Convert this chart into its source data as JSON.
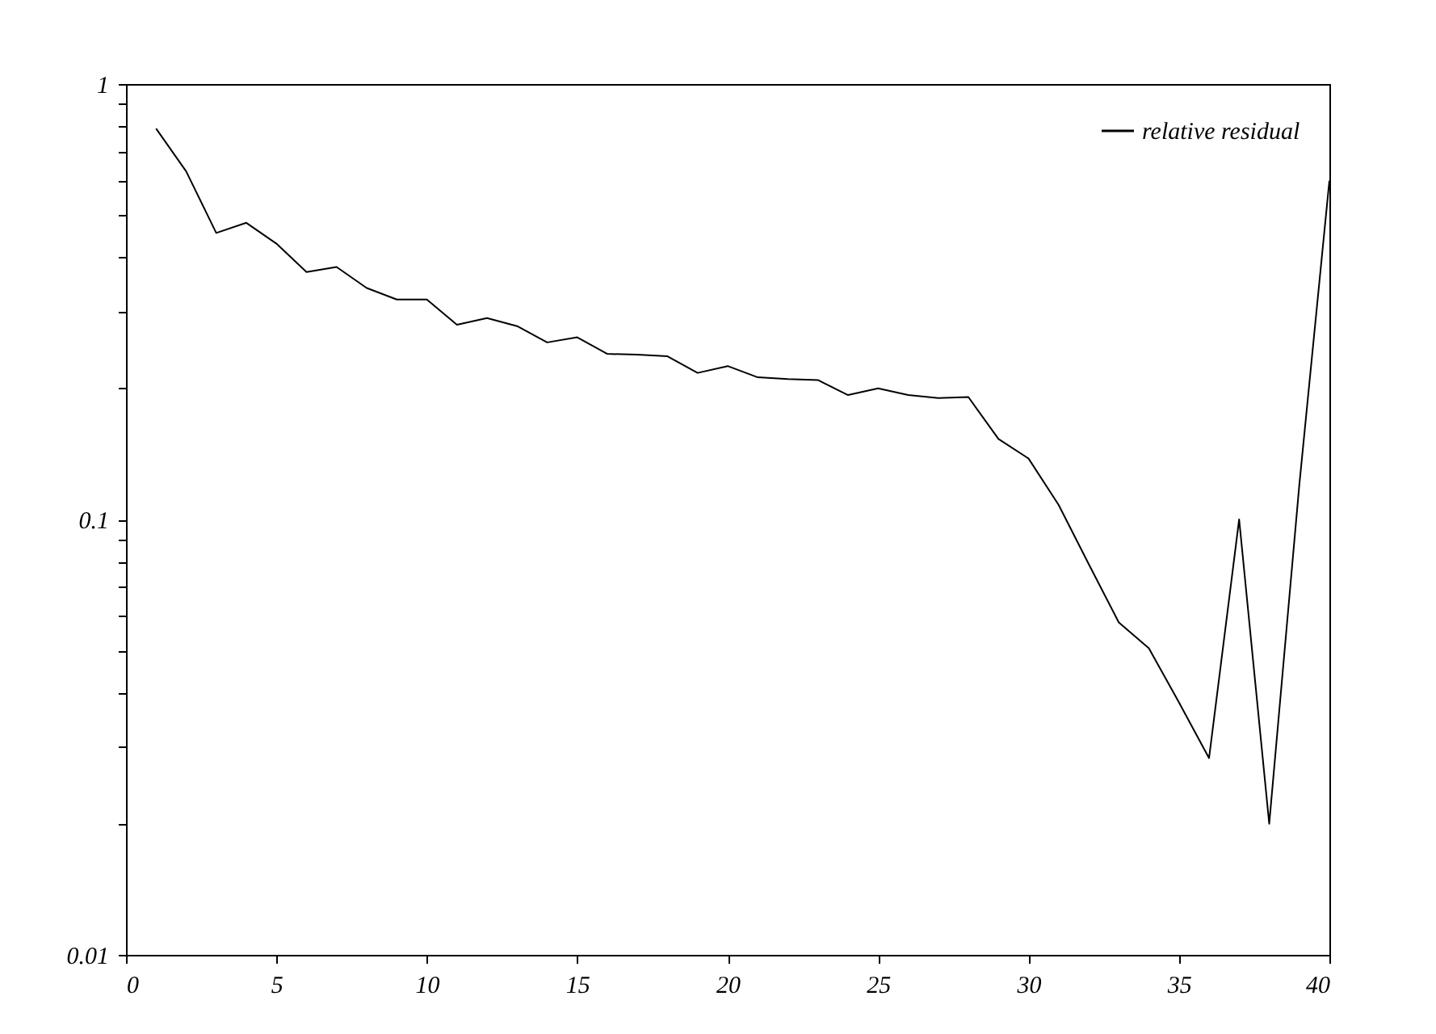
{
  "chart_data": {
    "type": "line",
    "log": "y",
    "grid": false,
    "legend": "top right",
    "marker": "none",
    "line_style": "solid",
    "x": [
      1,
      2,
      3,
      4,
      5,
      6,
      7,
      8,
      9,
      10,
      11,
      12,
      13,
      14,
      15,
      16,
      17,
      18,
      19,
      20,
      21,
      22,
      23,
      24,
      25,
      26,
      27,
      28,
      29,
      30,
      31,
      32,
      33,
      34,
      35,
      36,
      37,
      38,
      39,
      40
    ],
    "series": [
      {
        "name": "relative residual",
        "color": "#000000",
        "values": [
          0.79,
          0.63,
          0.455,
          0.48,
          0.43,
          0.37,
          0.38,
          0.34,
          0.32,
          0.32,
          0.28,
          0.29,
          0.278,
          0.255,
          0.262,
          0.24,
          0.239,
          0.237,
          0.217,
          0.225,
          0.212,
          0.21,
          0.209,
          0.193,
          0.2,
          0.193,
          0.19,
          0.191,
          0.153,
          0.138,
          0.108,
          0.079,
          0.058,
          0.0506,
          0.038,
          0.0283,
          0.1,
          0.02,
          0.12,
          0.6
        ]
      }
    ],
    "xlim": [
      0,
      40
    ],
    "xticks": [
      0,
      5,
      10,
      15,
      20,
      25,
      30,
      35,
      40
    ],
    "ylim": [
      0.01,
      1
    ],
    "yticks": [
      0.01,
      {
        "value": 0.02,
        "label": null
      },
      {
        "value": 0.03,
        "label": null
      },
      {
        "value": 0.04,
        "label": null
      },
      {
        "value": 0.05,
        "label": null
      },
      {
        "value": 0.06,
        "label": null
      },
      {
        "value": 0.07,
        "label": null
      },
      {
        "value": 0.08,
        "label": null
      },
      {
        "value": 0.09,
        "label": null
      },
      0.1,
      {
        "value": 0.2,
        "label": null
      },
      {
        "value": 0.3,
        "label": null
      },
      {
        "value": 0.4,
        "label": null
      },
      {
        "value": 0.5,
        "label": null
      },
      {
        "value": 0.6,
        "label": null
      },
      {
        "value": 0.7,
        "label": null
      },
      {
        "value": 0.8,
        "label": null
      },
      {
        "value": 0.9,
        "label": null
      },
      1
    ]
  }
}
